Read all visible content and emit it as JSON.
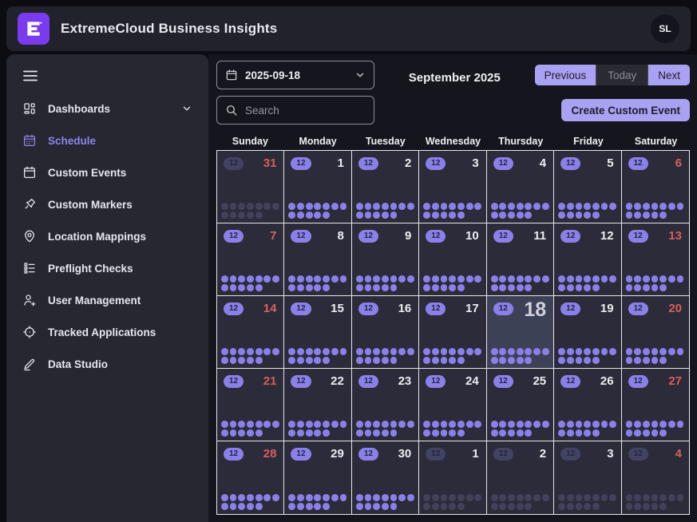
{
  "colors": {
    "brand_purple": "#7a3bee",
    "accent_purple": "#a9a2f2",
    "badge_purple": "#8b80e8",
    "weekend_red": "#d7605a",
    "sidebar_active": "#8d84ea"
  },
  "header": {
    "title": "ExtremeCloud Business Insights",
    "logo_letter": "E",
    "avatar_initials": "SL"
  },
  "sidebar": {
    "items": [
      {
        "id": "dashboards",
        "label": "Dashboards",
        "icon": "dashboards-icon",
        "chevron": true,
        "active": false
      },
      {
        "id": "schedule",
        "label": "Schedule",
        "icon": "schedule-icon",
        "chevron": false,
        "active": true
      },
      {
        "id": "custom-events",
        "label": "Custom Events",
        "icon": "calendar-icon",
        "chevron": false,
        "active": false
      },
      {
        "id": "custom-markers",
        "label": "Custom Markers",
        "icon": "pushpin-icon",
        "chevron": false,
        "active": false
      },
      {
        "id": "location-mappings",
        "label": "Location Mappings",
        "icon": "map-pin-icon",
        "chevron": false,
        "active": false
      },
      {
        "id": "preflight-checks",
        "label": "Preflight Checks",
        "icon": "checklist-icon",
        "chevron": false,
        "active": false
      },
      {
        "id": "user-management",
        "label": "User Management",
        "icon": "user-plus-icon",
        "chevron": false,
        "active": false
      },
      {
        "id": "tracked-applications",
        "label": "Tracked Applications",
        "icon": "crosshair-icon",
        "chevron": false,
        "active": false
      },
      {
        "id": "data-studio",
        "label": "Data Studio",
        "icon": "pencil-icon",
        "chevron": false,
        "active": false
      }
    ]
  },
  "toolbar": {
    "date_value": "2025-09-18",
    "search_placeholder": "Search",
    "month_title": "September 2025",
    "previous_label": "Previous",
    "today_label": "Today",
    "next_label": "Next",
    "create_event_label": "Create Custom Event"
  },
  "calendar": {
    "day_headers": [
      "Sunday",
      "Monday",
      "Tuesday",
      "Wednesday",
      "Thursday",
      "Friday",
      "Saturday"
    ],
    "event_badge": "12",
    "dots_per_day": 12,
    "weeks": [
      [
        {
          "date": "31",
          "outside": true,
          "weekend": true
        },
        {
          "date": "1"
        },
        {
          "date": "2"
        },
        {
          "date": "3"
        },
        {
          "date": "4"
        },
        {
          "date": "5"
        },
        {
          "date": "6",
          "weekend": true
        }
      ],
      [
        {
          "date": "7",
          "weekend": true
        },
        {
          "date": "8"
        },
        {
          "date": "9"
        },
        {
          "date": "10"
        },
        {
          "date": "11"
        },
        {
          "date": "12"
        },
        {
          "date": "13",
          "weekend": true
        }
      ],
      [
        {
          "date": "14",
          "weekend": true
        },
        {
          "date": "15"
        },
        {
          "date": "16"
        },
        {
          "date": "17"
        },
        {
          "date": "18",
          "today": true
        },
        {
          "date": "19"
        },
        {
          "date": "20",
          "weekend": true
        }
      ],
      [
        {
          "date": "21",
          "weekend": true
        },
        {
          "date": "22"
        },
        {
          "date": "23"
        },
        {
          "date": "24"
        },
        {
          "date": "25"
        },
        {
          "date": "26"
        },
        {
          "date": "27",
          "weekend": true
        }
      ],
      [
        {
          "date": "28",
          "weekend": true
        },
        {
          "date": "29"
        },
        {
          "date": "30"
        },
        {
          "date": "1",
          "outside": true
        },
        {
          "date": "2",
          "outside": true
        },
        {
          "date": "3",
          "outside": true
        },
        {
          "date": "4",
          "outside": true,
          "weekend": true
        }
      ]
    ]
  }
}
